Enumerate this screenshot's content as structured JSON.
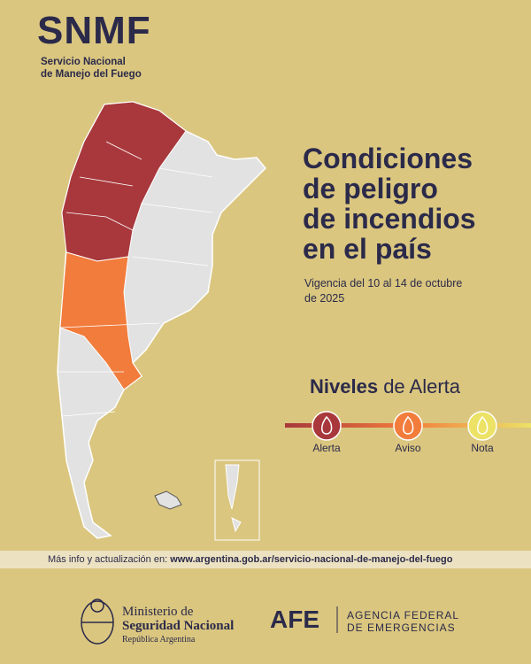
{
  "header": {
    "logo": "SNMF",
    "subtitle_line1": "Servicio Nacional",
    "subtitle_line2": "de Manejo del Fuego"
  },
  "main": {
    "title_lines": [
      "Condiciones",
      "de peligro",
      "de incendios",
      "en el país"
    ],
    "validity_lines": [
      "Vigencia del 10 al 14 de octubre",
      "de 2025"
    ]
  },
  "legend": {
    "title_bold": "Niveles",
    "title_rest": "de Alerta",
    "levels": [
      {
        "label": "Alerta",
        "color": "#a8383c"
      },
      {
        "label": "Aviso",
        "color": "#f27c3c"
      },
      {
        "label": "Nota",
        "color": "#ece266"
      }
    ]
  },
  "footer": {
    "info_prefix": "Más info y actualización en:",
    "info_url": "www.argentina.gob.ar/servicio-nacional-de-manejo-del-fuego",
    "ministry_line1": "Ministerio de",
    "ministry_line2": "Seguridad Nacional",
    "ministry_sub": "República Argentina",
    "afe": "AFE",
    "agency_line1": "AGENCIA FEDERAL",
    "agency_line2": "DE EMERGENCIAS"
  }
}
